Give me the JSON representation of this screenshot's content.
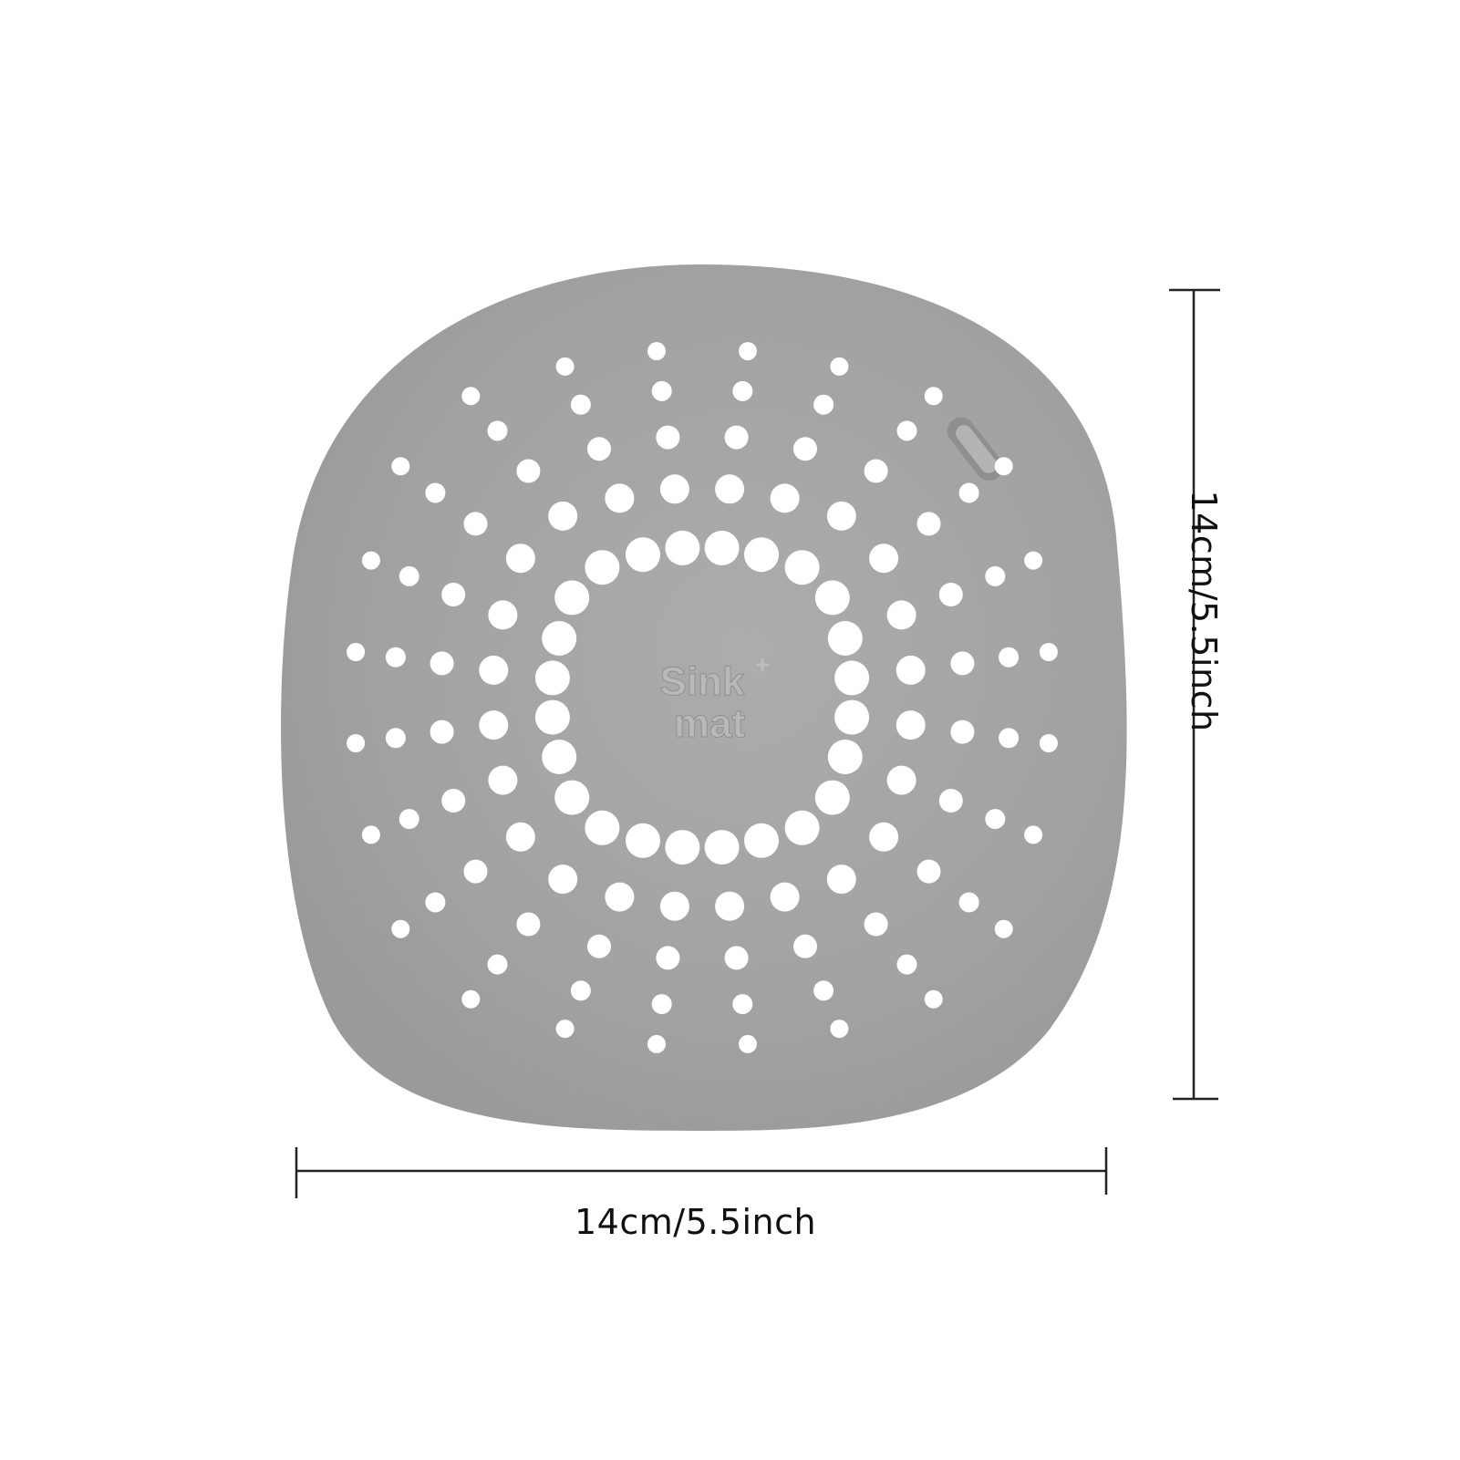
{
  "product": {
    "logo_text": "Sink mat",
    "logo_superscript": "+",
    "body_color": "#a3a3a3",
    "hole_color": "#ffffff"
  },
  "dimensions": {
    "width_label": "14cm/5.5inch",
    "height_label": "14cm/5.5inch",
    "line_color": "#222222"
  }
}
